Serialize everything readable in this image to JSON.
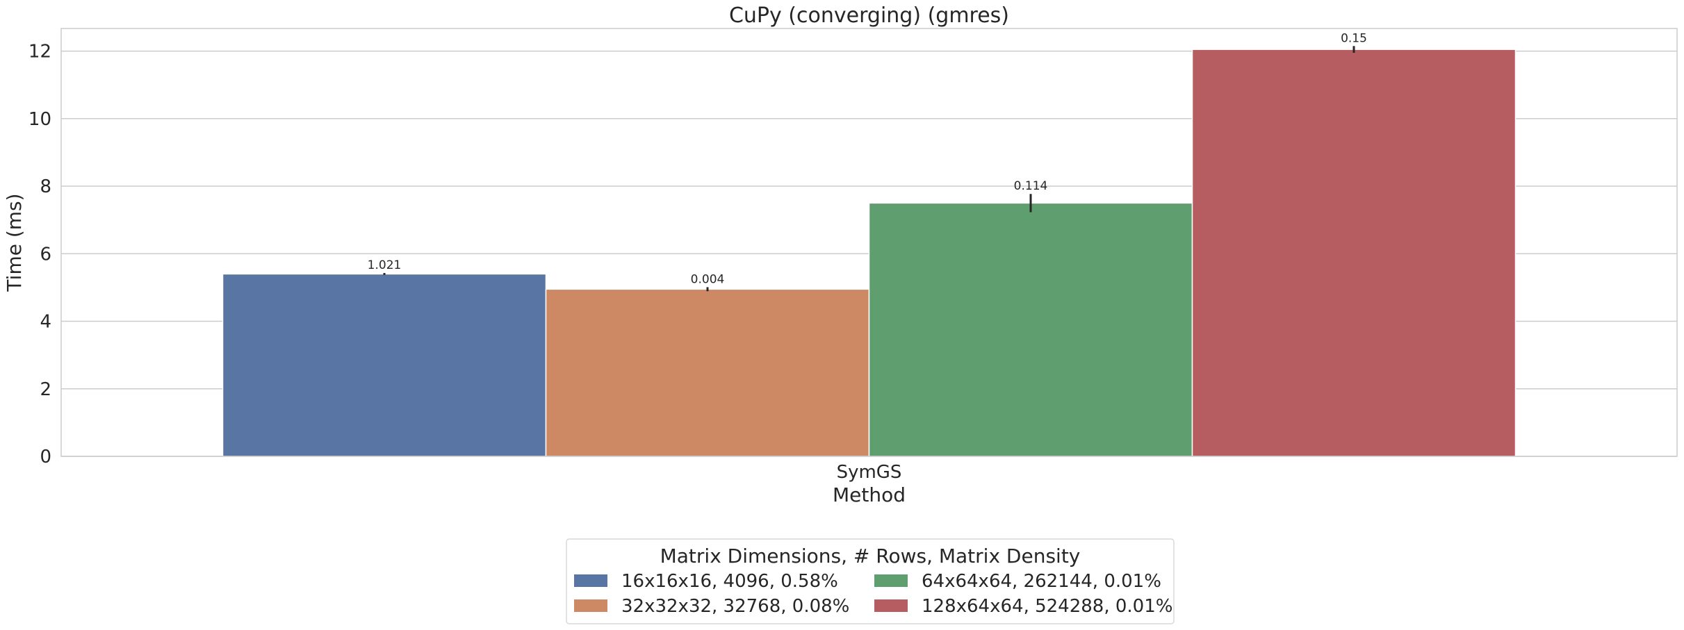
{
  "chart_data": {
    "type": "bar",
    "title": "CuPy (converging) (gmres)",
    "xlabel": "Method",
    "ylabel": "Time (ms)",
    "categories": [
      "SymGS"
    ],
    "ylim": [
      0,
      12.67
    ],
    "yticks": [
      0,
      2,
      4,
      6,
      8,
      10,
      12
    ],
    "grid": true,
    "legend": {
      "title": "Matrix Dimensions, # Rows, Matrix Density",
      "placement": "bottom-center",
      "columns": 2
    },
    "series": [
      {
        "name": "16x16x16, 4096, 0.58%",
        "values": [
          5.4
        ],
        "error": [
          0.03
        ],
        "label": "1.021",
        "color": "#5975a4"
      },
      {
        "name": "32x32x32, 32768, 0.08%",
        "values": [
          4.95
        ],
        "error": [
          0.06
        ],
        "label": "0.004",
        "color": "#cc8963"
      },
      {
        "name": "64x64x64, 262144, 0.01%",
        "values": [
          7.5
        ],
        "error": [
          0.27
        ],
        "label": "0.114",
        "color": "#5f9e6e"
      },
      {
        "name": "128x64x64, 524288, 0.01%",
        "values": [
          12.05
        ],
        "error": [
          0.1
        ],
        "label": "0.15",
        "color": "#b55d60"
      }
    ]
  }
}
